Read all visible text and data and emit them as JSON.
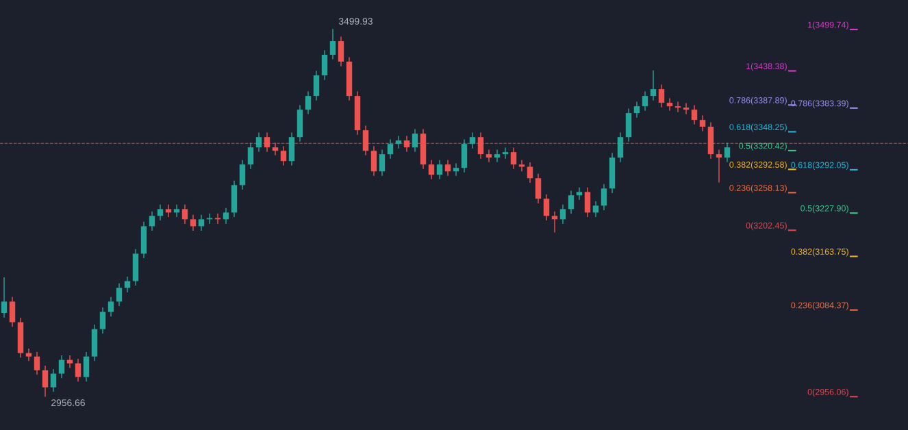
{
  "chart_data": {
    "type": "candlestick",
    "categories": [
      null,
      null,
      null,
      null,
      null,
      null,
      null,
      null,
      null,
      null,
      null,
      null,
      null,
      null,
      null,
      null,
      null,
      null,
      null,
      null,
      null,
      null,
      null,
      null,
      null,
      null,
      null,
      null,
      null,
      null,
      null,
      null,
      null,
      null,
      null,
      null,
      null,
      null,
      null,
      null,
      null,
      null,
      null,
      null,
      null,
      null,
      null,
      null,
      null,
      null,
      null,
      null,
      null,
      null,
      null,
      null,
      null,
      null,
      null,
      null,
      null,
      null,
      null,
      null,
      null,
      null,
      null,
      null,
      null,
      null,
      null,
      null,
      null,
      null,
      null,
      null,
      null,
      null,
      null,
      null,
      null,
      null,
      null,
      null,
      null,
      null,
      null,
      null,
      null
    ],
    "colors": [
      "#26a69a",
      "#ef5350",
      "#ef5350",
      "#ef5350",
      "#ef5350",
      "#ef5350",
      "#26a69a",
      "#26a69a",
      "#ef5350",
      "#ef5350",
      "#26a69a",
      "#26a69a",
      "#26a69a",
      "#26a69a",
      "#26a69a",
      "#26a69a",
      "#26a69a",
      "#26a69a",
      "#26a69a",
      "#26a69a",
      "#ef5350",
      "#26a69a",
      "#ef5350",
      "#ef5350",
      "#26a69a",
      "#26a69a",
      "#ef5350",
      "#26a69a",
      "#26a69a",
      "#26a69a",
      "#26a69a",
      "#26a69a",
      "#ef5350",
      "#ef5350",
      "#ef5350",
      "#26a69a",
      "#26a69a",
      "#26a69a",
      "#26a69a",
      "#26a69a",
      "#26a69a",
      "#ef5350",
      "#ef5350",
      "#ef5350",
      "#ef5350",
      "#ef5350",
      "#26a69a",
      "#26a69a",
      "#26a69a",
      "#ef5350",
      "#26a69a",
      "#ef5350",
      "#ef5350",
      "#26a69a",
      "#ef5350",
      "#26a69a",
      "#26a69a",
      "#26a69a",
      "#ef5350",
      "#ef5350",
      "#26a69a",
      "#26a69a",
      "#ef5350",
      "#ef5350",
      "#ef5350",
      "#ef5350",
      "#ef5350",
      "#ef5350",
      "#26a69a",
      "#26a69a",
      "#26a69a",
      "#ef5350",
      "#26a69a",
      "#26a69a",
      "#26a69a",
      "#26a69a",
      "#26a69a",
      "#26a69a",
      "#26a69a",
      "#26a69a",
      "#ef5350",
      "#ef5350",
      "#ef5350",
      "#ef5350",
      "#ef5350",
      "#ef5350",
      "#ef5350",
      "#ef5350",
      "#26a69a"
    ],
    "ohlc": [
      [
        3080.0,
        3132.0,
        3074.0,
        3096.8
      ],
      [
        3096.8,
        3102.8,
        3060.3,
        3066.3
      ],
      [
        3066.3,
        3072.3,
        3014.6,
        3020.6
      ],
      [
        3020.6,
        3026.6,
        3009.5,
        3015.5
      ],
      [
        3015.5,
        3021.5,
        2989.2,
        2995.2
      ],
      [
        2995.2,
        3001.2,
        2956.66,
        2969.9
      ],
      [
        2969.9,
        2996.2,
        2963.9,
        2990.2
      ],
      [
        2990.2,
        3016.5,
        2984.2,
        3010.5
      ],
      [
        3010.5,
        3016.5,
        2999.4,
        3005.4
      ],
      [
        3005.4,
        3011.4,
        2979.1,
        2985.1
      ],
      [
        2985.1,
        3021.5,
        2979.1,
        3015.5
      ],
      [
        3015.5,
        3062.1,
        3009.5,
        3056.1
      ],
      [
        3056.1,
        3087.5,
        3050.1,
        3081.5
      ],
      [
        3081.5,
        3102.8,
        3075.5,
        3096.8
      ],
      [
        3096.8,
        3123.1,
        3090.8,
        3117.1
      ],
      [
        3117.1,
        3133.2,
        3111.1,
        3127.2
      ],
      [
        3127.2,
        3173.8,
        3121.2,
        3167.8
      ],
      [
        3167.8,
        3214.4,
        3161.8,
        3208.4
      ],
      [
        3208.4,
        3229.7,
        3202.4,
        3223.7
      ],
      [
        3223.7,
        3239.8,
        3217.7,
        3233.8
      ],
      [
        3233.8,
        3239.8,
        3222.7,
        3228.7
      ],
      [
        3228.7,
        3239.8,
        3222.7,
        3233.8
      ],
      [
        3233.8,
        3239.8,
        3212.6,
        3218.6
      ],
      [
        3218.6,
        3224.6,
        3202.4,
        3208.4
      ],
      [
        3208.4,
        3224.6,
        3202.4,
        3218.6
      ],
      [
        3218.6,
        3226.6,
        3212.6,
        3220.6
      ],
      [
        3220.6,
        3226.6,
        3212.6,
        3218.6
      ],
      [
        3218.6,
        3234.7,
        3212.6,
        3228.7
      ],
      [
        3228.7,
        3275.3,
        3222.7,
        3269.3
      ],
      [
        3269.3,
        3305.8,
        3263.3,
        3299.8
      ],
      [
        3299.8,
        3331.2,
        3293.8,
        3325.2
      ],
      [
        3325.2,
        3346.4,
        3319.2,
        3340.4
      ],
      [
        3340.4,
        3346.4,
        3319.2,
        3325.2
      ],
      [
        3325.2,
        3331.2,
        3314.1,
        3320.1
      ],
      [
        3320.1,
        3326.1,
        3298.9,
        3304.9
      ],
      [
        3304.9,
        3346.4,
        3298.9,
        3340.4
      ],
      [
        3340.4,
        3387.0,
        3334.4,
        3381.0
      ],
      [
        3381.0,
        3407.3,
        3375.0,
        3401.3
      ],
      [
        3401.3,
        3437.8,
        3395.3,
        3431.8
      ],
      [
        3431.8,
        3468.3,
        3425.8,
        3462.3
      ],
      [
        3462.3,
        3499.93,
        3456.3,
        3482.5
      ],
      [
        3482.5,
        3488.5,
        3446.1,
        3452.1
      ],
      [
        3452.1,
        3458.1,
        3395.3,
        3401.3
      ],
      [
        3401.3,
        3407.3,
        3344.6,
        3350.6
      ],
      [
        3350.6,
        3356.6,
        3314.1,
        3320.1
      ],
      [
        3320.1,
        3326.1,
        3283.7,
        3289.7
      ],
      [
        3289.7,
        3321.1,
        3283.7,
        3315.1
      ],
      [
        3315.1,
        3336.3,
        3309.1,
        3330.3
      ],
      [
        3330.3,
        3341.4,
        3324.3,
        3335.4
      ],
      [
        3335.4,
        3341.4,
        3319.2,
        3325.2
      ],
      [
        3325.2,
        3351.5,
        3319.2,
        3345.5
      ],
      [
        3345.5,
        3351.5,
        3293.8,
        3299.8
      ],
      [
        3299.8,
        3305.8,
        3278.6,
        3284.6
      ],
      [
        3284.6,
        3305.8,
        3278.6,
        3299.8
      ],
      [
        3299.8,
        3305.8,
        3283.7,
        3289.7
      ],
      [
        3289.7,
        3300.8,
        3283.7,
        3294.8
      ],
      [
        3294.8,
        3336.3,
        3288.8,
        3330.3
      ],
      [
        3330.3,
        3346.4,
        3324.3,
        3340.4
      ],
      [
        3340.4,
        3346.4,
        3309.1,
        3315.1
      ],
      [
        3315.1,
        3321.1,
        3304.0,
        3310.0
      ],
      [
        3310.0,
        3321.1,
        3304.0,
        3315.1
      ],
      [
        3315.1,
        3324.2,
        3309.1,
        3318.2
      ],
      [
        3318.2,
        3324.2,
        3293.8,
        3299.8
      ],
      [
        3299.8,
        3305.8,
        3290.5,
        3296.5
      ],
      [
        3296.5,
        3302.5,
        3273.5,
        3279.5
      ],
      [
        3279.5,
        3285.5,
        3243.1,
        3249.1
      ],
      [
        3249.1,
        3255.1,
        3217.7,
        3223.7
      ],
      [
        3223.7,
        3229.7,
        3200.0,
        3218.6
      ],
      [
        3218.6,
        3239.8,
        3212.6,
        3233.8
      ],
      [
        3233.8,
        3260.2,
        3227.8,
        3254.2
      ],
      [
        3254.2,
        3265.2,
        3248.2,
        3259.2
      ],
      [
        3259.2,
        3265.2,
        3222.7,
        3228.7
      ],
      [
        3228.7,
        3244.9,
        3222.7,
        3238.9
      ],
      [
        3238.9,
        3270.3,
        3232.9,
        3264.3
      ],
      [
        3264.3,
        3316.0,
        3258.3,
        3310.0
      ],
      [
        3310.0,
        3346.4,
        3304.0,
        3340.4
      ],
      [
        3340.4,
        3382.0,
        3334.4,
        3376.0
      ],
      [
        3376.0,
        3392.1,
        3370.0,
        3386.1
      ],
      [
        3386.1,
        3407.3,
        3380.1,
        3401.3
      ],
      [
        3401.3,
        3438.4,
        3395.3,
        3411.5
      ],
      [
        3411.5,
        3417.5,
        3385.2,
        3391.2
      ],
      [
        3391.2,
        3397.2,
        3380.1,
        3386.1
      ],
      [
        3386.1,
        3392.1,
        3378.0,
        3384.0
      ],
      [
        3384.0,
        3390.0,
        3375.0,
        3381.0
      ],
      [
        3381.0,
        3387.0,
        3359.8,
        3365.8
      ],
      [
        3365.8,
        3371.8,
        3349.7,
        3355.7
      ],
      [
        3355.7,
        3361.7,
        3309.1,
        3315.1
      ],
      [
        3315.1,
        3321.1,
        3274.0,
        3310.0
      ],
      [
        3310.0,
        3331.2,
        3304.0,
        3325.2
      ]
    ],
    "tick_labels": false,
    "ref_lines": [
      {
        "axis": "y",
        "value": 3331,
        "label": null,
        "color": "#c0392b",
        "line_style": "dashed"
      },
      {
        "axis": "y",
        "value": 3438.38,
        "label": "1(3438.38)",
        "color": "#d63ac8"
      },
      {
        "axis": "y",
        "value": 3387.89,
        "label": "0.786(3387.89)",
        "color": "#9a8cf0"
      },
      {
        "axis": "y",
        "value": 3348.25,
        "label": "0.618(3348.25)",
        "color": "#22b5d6"
      },
      {
        "axis": "y",
        "value": 3320.42,
        "label": "0.5(3320.42)",
        "color": "#3cc48a"
      },
      {
        "axis": "y",
        "value": 3292.58,
        "label": "0.382(3292.58)",
        "color": "#f2b01e"
      },
      {
        "axis": "y",
        "value": 3258.13,
        "label": "0.236(3258.13)",
        "color": "#f06a3c"
      },
      {
        "axis": "y",
        "value": 3202.45,
        "label": "0(3202.45)",
        "color": "#e0464e"
      },
      {
        "axis": "y",
        "value": 3499.74,
        "label": "1(3499.74)",
        "color": "#d63ac8"
      },
      {
        "axis": "y",
        "value": 3383.39,
        "label": "0.786(3383.39)",
        "color": "#9a8cf0"
      },
      {
        "axis": "y",
        "value": 3292.05,
        "label": "0.618(3292.05)",
        "color": "#22b5d6"
      },
      {
        "axis": "y",
        "value": 3227.9,
        "label": "0.5(3227.90)",
        "color": "#3cc48a"
      },
      {
        "axis": "y",
        "value": 3163.75,
        "label": "0.382(3163.75)",
        "color": "#f2b01e"
      },
      {
        "axis": "y",
        "value": 3084.37,
        "label": "0.236(3084.37)",
        "color": "#f06a3c"
      },
      {
        "axis": "y",
        "value": 2956.06,
        "label": "0(2956.06)",
        "color": "#e0464e"
      }
    ],
    "annotations": [
      "3499.93",
      "2956.66"
    ]
  }
}
